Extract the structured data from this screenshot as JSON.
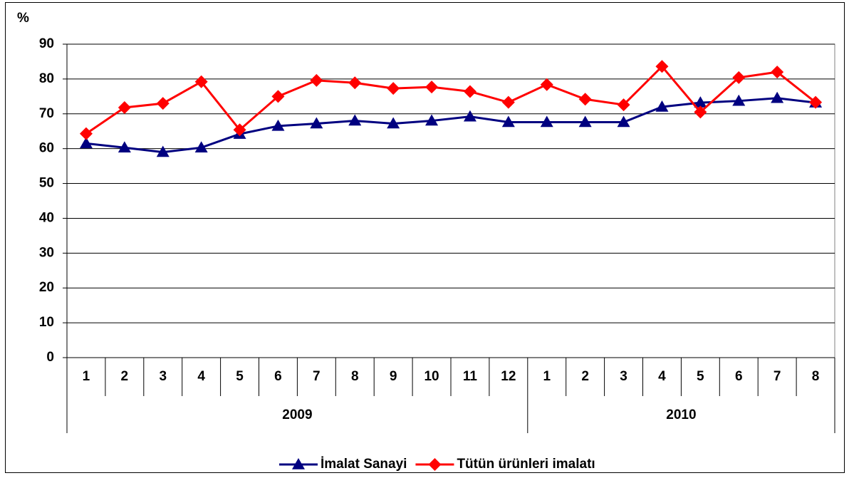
{
  "chart_data": {
    "type": "line",
    "y_label": "%",
    "groups": [
      {
        "label": "2009",
        "categories": [
          "1",
          "2",
          "3",
          "4",
          "5",
          "6",
          "7",
          "8",
          "9",
          "10",
          "11",
          "12"
        ]
      },
      {
        "label": "2010",
        "categories": [
          "1",
          "2",
          "3",
          "4",
          "5",
          "6",
          "7",
          "8"
        ]
      }
    ],
    "series": [
      {
        "name": "İmalat Sanayi",
        "color": "#000080",
        "marker": "triangle",
        "values": [
          61.5,
          60.3,
          59,
          60.3,
          64.2,
          66.5,
          67.2,
          68,
          67.2,
          68,
          69.2,
          67.6,
          67.6,
          67.6,
          67.6,
          72,
          73.2,
          73.7,
          74.5,
          73.2
        ]
      },
      {
        "name": "Tütün ürünleri imalatı",
        "color": "#ff0000",
        "marker": "diamond",
        "values": [
          64.3,
          71.8,
          73,
          79.2,
          65.4,
          75,
          79.6,
          78.9,
          77.3,
          77.7,
          76.4,
          73.3,
          78.4,
          74.2,
          72.6,
          83.6,
          70.5,
          80.4,
          82,
          73.3
        ]
      }
    ],
    "ylim": [
      0,
      90
    ],
    "yticks": [
      0,
      10,
      20,
      30,
      40,
      50,
      60,
      70,
      80,
      90
    ],
    "grid": true,
    "legend": "bottom"
  }
}
